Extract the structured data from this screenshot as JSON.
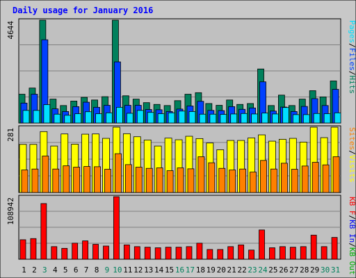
{
  "chart_data": {
    "type": "bar",
    "title": "Daily usage for January 2016",
    "days": [
      1,
      2,
      3,
      4,
      5,
      6,
      7,
      8,
      9,
      10,
      11,
      12,
      13,
      14,
      15,
      16,
      17,
      18,
      19,
      20,
      21,
      22,
      23,
      24,
      25,
      26,
      27,
      28,
      29,
      30,
      31
    ],
    "weekend_days": [
      3,
      9,
      10,
      16,
      17,
      23,
      24,
      30,
      31
    ],
    "colors": {
      "background": "#C0C0C0",
      "frame": "#C8C8C8",
      "hits": "#00805C",
      "files": "#0040FF",
      "pages": "#00E0FF",
      "visits": "#FFFF00",
      "sites": "#FF8000",
      "kb_in": "#00B000",
      "kb_out": "#0000FF",
      "kb_f": "#FF0000",
      "title": "#0000FF",
      "tick_weekday": "#000000",
      "tick_weekend": "#00805C"
    },
    "panels": [
      {
        "name": "pages-files-hits",
        "max_label": "4644",
        "ylim": [
          0,
          4644
        ],
        "legend": [
          {
            "label": "Pages",
            "color": "#00E0FF"
          },
          {
            "label": "/",
            "color": "#000000"
          },
          {
            "label": "Files",
            "color": "#0040FF"
          },
          {
            "label": "/",
            "color": "#000000"
          },
          {
            "label": "Hits",
            "color": "#00805C"
          }
        ],
        "series": [
          {
            "name": "Hits",
            "color": "#00805C",
            "values": [
              1300,
              1580,
              4644,
              1080,
              790,
              990,
              1160,
              1040,
              1190,
              4644,
              1230,
              1080,
              920,
              840,
              790,
              1010,
              1300,
              1370,
              880,
              800,
              1040,
              840,
              880,
              2440,
              790,
              1260,
              790,
              1080,
              1460,
              1180,
              1900
            ]
          },
          {
            "name": "Files",
            "color": "#0040FF",
            "values": [
              900,
              1300,
              3760,
              640,
              520,
              740,
              940,
              710,
              800,
              2760,
              800,
              800,
              610,
              600,
              520,
              630,
              770,
              980,
              570,
              560,
              740,
              620,
              680,
              1860,
              540,
              720,
              520,
              750,
              1100,
              790,
              1520
            ]
          },
          {
            "name": "Pages",
            "color": "#00E0FF",
            "values": [
              570,
              570,
              830,
              400,
              350,
              420,
              510,
              420,
              460,
              710,
              440,
              570,
              480,
              420,
              460,
              540,
              520,
              400,
              400,
              390,
              410,
              430,
              410,
              450,
              410,
              700,
              380,
              380,
              430,
              420,
              460
            ]
          }
        ]
      },
      {
        "name": "visits-sites",
        "max_label": "281",
        "ylim": [
          0,
          281
        ],
        "legend": [
          {
            "label": "Sites",
            "color": "#FF8000"
          },
          {
            "label": "/",
            "color": "#000000"
          },
          {
            "label": "Visits",
            "color": "#FFFF00"
          }
        ],
        "series": [
          {
            "name": "Visits",
            "color": "#FFFF00",
            "values": [
              207,
              207,
              262,
              200,
              252,
              208,
              251,
              252,
              233,
              281,
              253,
              240,
              226,
              200,
              234,
              227,
              242,
              232,
              213,
              184,
              224,
              224,
              235,
              248,
              221,
              229,
              233,
              217,
              281,
              236,
              281
            ]
          },
          {
            "name": "Sites",
            "color": "#FF8000",
            "values": [
              97,
              101,
              157,
              101,
              115,
              109,
              112,
              111,
              100,
              167,
              120,
              109,
              104,
              106,
              94,
              106,
              102,
              154,
              128,
              104,
              97,
              101,
              88,
              138,
              101,
              126,
              100,
              114,
              130,
              119,
              154
            ]
          }
        ]
      },
      {
        "name": "kb",
        "max_label": "108942",
        "ylim": [
          0,
          108942
        ],
        "legend": [
          {
            "label": "KB F",
            "color": "#FF0000"
          },
          {
            "label": "/",
            "color": "#000000"
          },
          {
            "label": "KB In",
            "color": "#0000FF"
          },
          {
            "label": "/",
            "color": "#000000"
          },
          {
            "label": "KB Out",
            "color": "#00B000"
          }
        ],
        "series": [
          {
            "name": "KB F",
            "color": "#FF0000",
            "values": [
              34000,
              36000,
              97000,
              22000,
              19000,
              28000,
              32000,
              26000,
              23000,
              108942,
              25000,
              22000,
              21000,
              20000,
              21000,
              21000,
              22000,
              28000,
              17000,
              17000,
              22000,
              25000,
              16000,
              51000,
              20000,
              22000,
              21000,
              22000,
              42000,
              22000,
              38000
            ]
          }
        ]
      }
    ]
  }
}
